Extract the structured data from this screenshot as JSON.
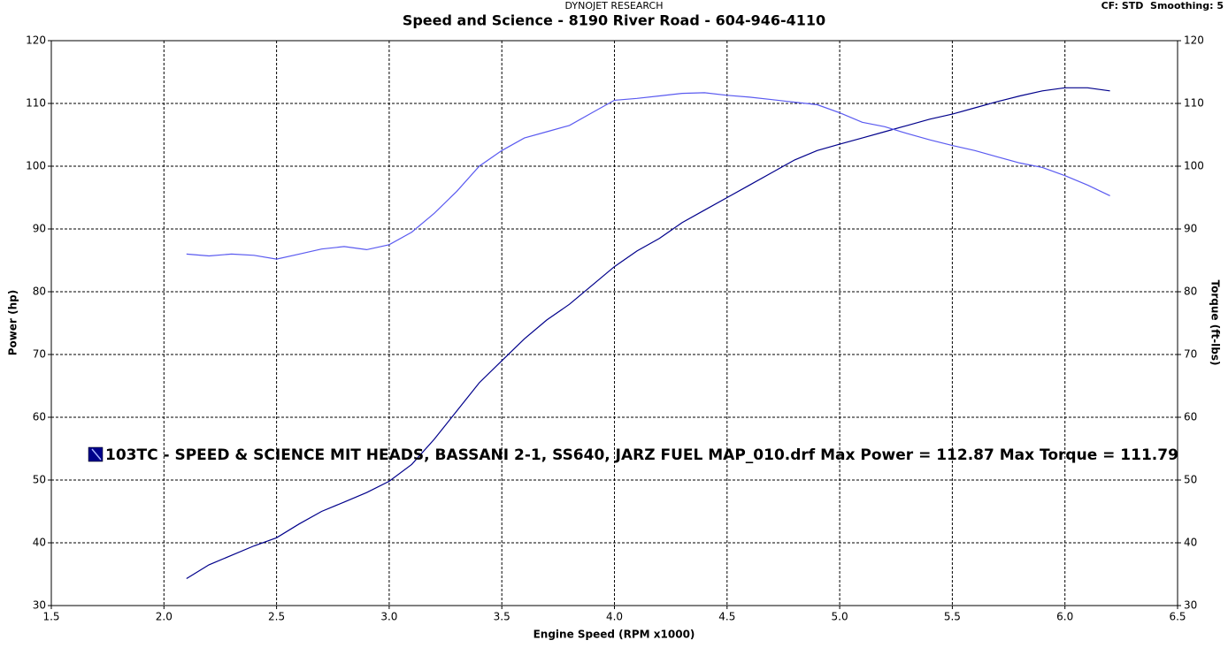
{
  "chart_data": {
    "type": "line",
    "header": "DYNOJET RESEARCH",
    "title": "Speed and Science - 8190 River Road - 604-946-4110",
    "settings_text": "CF: STD  Smoothing: 5",
    "xlabel": "Engine Speed (RPM x1000)",
    "ylabel": "Power (hp)",
    "y2label": "Torque (ft-lbs)",
    "run_label": "103TC - SPEED & SCIENCE MIT HEADS, BASSANI 2-1, SS640, JARZ FUEL MAP_010.drf Max Power = 112.87 Max Torque = 111.79",
    "x": [
      2.1,
      2.2,
      2.3,
      2.4,
      2.5,
      2.6,
      2.7,
      2.8,
      2.9,
      3.0,
      3.1,
      3.2,
      3.3,
      3.4,
      3.5,
      3.6,
      3.7,
      3.8,
      3.9,
      4.0,
      4.1,
      4.2,
      4.3,
      4.4,
      4.5,
      4.6,
      4.7,
      4.8,
      4.9,
      5.0,
      5.1,
      5.2,
      5.3,
      5.4,
      5.5,
      5.6,
      5.7,
      5.8,
      5.9,
      6.0,
      6.1,
      6.2
    ],
    "series": [
      {
        "color": "#00008b",
        "values": [
          34.3,
          36.5,
          38,
          39.5,
          40.8,
          43,
          45,
          46.5,
          48,
          49.8,
          52.5,
          56.5,
          61,
          65.5,
          69,
          72.5,
          75.5,
          78,
          81,
          84,
          86.5,
          88.5,
          91,
          93,
          95,
          97,
          99,
          101,
          102.5,
          103.5,
          104.5,
          105.5,
          106.5,
          107.5,
          108.3,
          109.3,
          110.3,
          111.2,
          112,
          112.5,
          112.5,
          112
        ]
      },
      {
        "color": "#5a5af0",
        "axis": "y2",
        "values": [
          86,
          85.7,
          86,
          85.8,
          85.2,
          86,
          86.8,
          87.2,
          86.7,
          87.5,
          89.5,
          92.5,
          96,
          100,
          102.5,
          104.5,
          105.5,
          106.5,
          108.5,
          110.5,
          110.8,
          111.2,
          111.6,
          111.7,
          111.3,
          111,
          110.6,
          110.2,
          109.8,
          108.5,
          107,
          106.3,
          105.2,
          104.2,
          103.3,
          102.5,
          101.5,
          100.5,
          99.8,
          98.5,
          97,
          95.3
        ]
      }
    ],
    "xlim": [
      1.5,
      6.5
    ],
    "xticks": [
      1.5,
      {
        "value": 2,
        "label": "2.0"
      },
      2.5,
      {
        "value": 3,
        "label": "3.0"
      },
      3.5,
      {
        "value": 4,
        "label": "4.0"
      },
      4.5,
      {
        "value": 5,
        "label": "5.0"
      },
      5.5,
      {
        "value": 6,
        "label": "6.0"
      },
      6.5
    ],
    "ylim": [
      30,
      120
    ],
    "yticks": [
      30,
      40,
      50,
      60,
      70,
      80,
      90,
      100,
      110,
      120
    ],
    "y2lim": [
      30,
      120
    ],
    "y2ticks": [
      30,
      40,
      50,
      60,
      70,
      80,
      90,
      100,
      110,
      120
    ],
    "grid": true
  }
}
